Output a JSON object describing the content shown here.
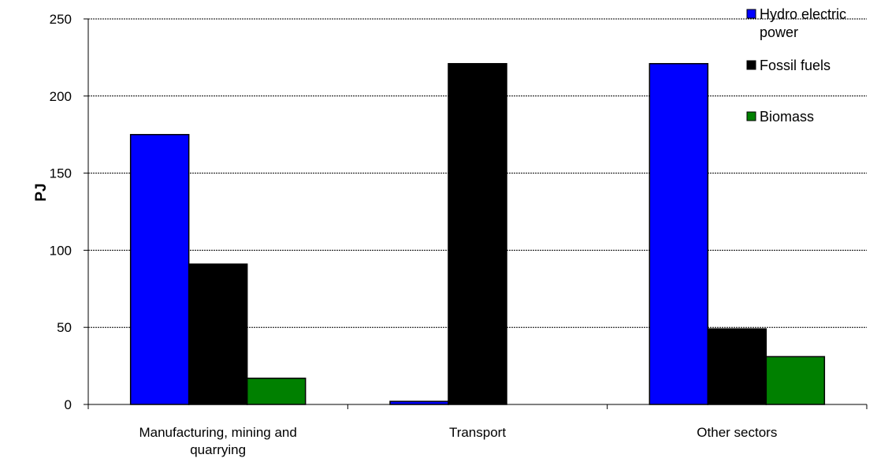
{
  "chart_data": {
    "type": "bar",
    "title": "",
    "xlabel": "",
    "ylabel": "PJ",
    "ylim": [
      0,
      250
    ],
    "yticks": [
      "0",
      "50",
      "100",
      "150",
      "200",
      "250"
    ],
    "grid": true,
    "legend_position": "top-right",
    "categories": [
      [
        "Manufacturing, mining and",
        "quarrying"
      ],
      [
        "Transport"
      ],
      [
        "Other sectors"
      ]
    ],
    "series": [
      {
        "name": [
          "Hydro electric",
          "power"
        ],
        "color": "#0000ff",
        "values": [
          175,
          2,
          221
        ]
      },
      {
        "name": [
          "Fossil fuels"
        ],
        "color": "#000000",
        "values": [
          91,
          221,
          49
        ]
      },
      {
        "name": [
          "Biomass"
        ],
        "color": "#008000",
        "values": [
          17,
          0,
          31
        ]
      }
    ]
  }
}
